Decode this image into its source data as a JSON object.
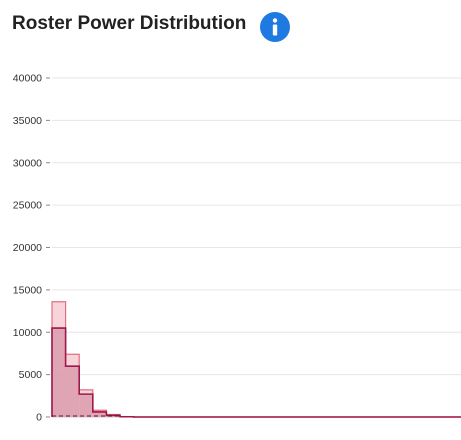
{
  "header": {
    "title": "Roster Power Distribution",
    "info_icon": "info-icon"
  },
  "colors": {
    "info_button": "#1e7ae0",
    "series_light_fill": "#f3c6cc",
    "series_light_stroke": "#e0707f",
    "series_dark_fill": "#d998aa",
    "series_dark_stroke": "#a0174a",
    "grid": "#e6e6e6"
  },
  "chart_data": {
    "type": "area",
    "title": "Roster Power Distribution",
    "xlabel": "",
    "ylabel": "",
    "ylim": [
      0,
      40000
    ],
    "yticks": [
      "0",
      "5000",
      "10000",
      "15000",
      "20000",
      "25000",
      "30000",
      "35000",
      "40000"
    ],
    "grid": true,
    "legend": "none",
    "bin_count": 30,
    "series": [
      {
        "style": "light",
        "values": [
          13600,
          7400,
          3200,
          800,
          300,
          50,
          0,
          0,
          0,
          0,
          0,
          0,
          0,
          0,
          0,
          0,
          0,
          0,
          0,
          0,
          0,
          0,
          0,
          0,
          0,
          0,
          0,
          0,
          0,
          0
        ]
      },
      {
        "style": "dark",
        "values": [
          10500,
          6000,
          2700,
          600,
          200,
          30,
          0,
          0,
          0,
          0,
          0,
          0,
          0,
          0,
          0,
          0,
          0,
          0,
          0,
          0,
          0,
          0,
          0,
          0,
          0,
          0,
          0,
          0,
          0,
          0
        ]
      }
    ]
  }
}
